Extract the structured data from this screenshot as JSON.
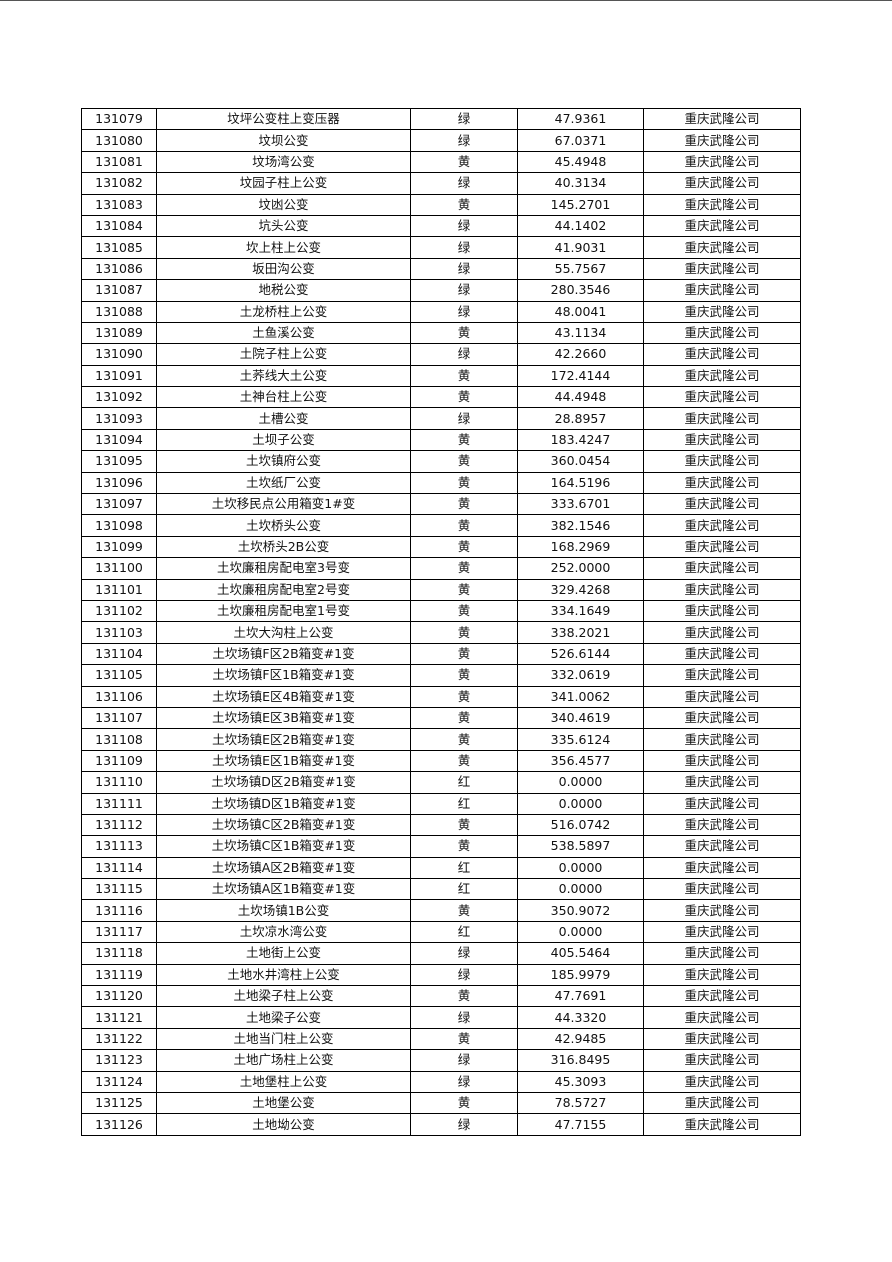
{
  "rows": [
    [
      "131079",
      "坟坪公变柱上变压器",
      "绿",
      "47.9361",
      "重庆武隆公司"
    ],
    [
      "131080",
      "坟坝公变",
      "绿",
      "67.0371",
      "重庆武隆公司"
    ],
    [
      "131081",
      "坟场湾公变",
      "黄",
      "45.4948",
      "重庆武隆公司"
    ],
    [
      "131082",
      "坟园子柱上公变",
      "绿",
      "40.3134",
      "重庆武隆公司"
    ],
    [
      "131083",
      "坟凼公变",
      "黄",
      "145.2701",
      "重庆武隆公司"
    ],
    [
      "131084",
      "坑头公变",
      "绿",
      "44.1402",
      "重庆武隆公司"
    ],
    [
      "131085",
      "坎上柱上公变",
      "绿",
      "41.9031",
      "重庆武隆公司"
    ],
    [
      "131086",
      "坂田沟公变",
      "绿",
      "55.7567",
      "重庆武隆公司"
    ],
    [
      "131087",
      "地税公变",
      "绿",
      "280.3546",
      "重庆武隆公司"
    ],
    [
      "131088",
      "土龙桥柱上公变",
      "绿",
      "48.0041",
      "重庆武隆公司"
    ],
    [
      "131089",
      "土鱼溪公变",
      "黄",
      "43.1134",
      "重庆武隆公司"
    ],
    [
      "131090",
      "土院子柱上公变",
      "绿",
      "42.2660",
      "重庆武隆公司"
    ],
    [
      "131091",
      "土荞线大土公变",
      "黄",
      "172.4144",
      "重庆武隆公司"
    ],
    [
      "131092",
      "土神台柱上公变",
      "黄",
      "44.4948",
      "重庆武隆公司"
    ],
    [
      "131093",
      "土槽公变",
      "绿",
      "28.8957",
      "重庆武隆公司"
    ],
    [
      "131094",
      "土坝子公变",
      "黄",
      "183.4247",
      "重庆武隆公司"
    ],
    [
      "131095",
      "土坎镇府公变",
      "黄",
      "360.0454",
      "重庆武隆公司"
    ],
    [
      "131096",
      "土坎纸厂公变",
      "黄",
      "164.5196",
      "重庆武隆公司"
    ],
    [
      "131097",
      "土坎移民点公用箱变1#变",
      "黄",
      "333.6701",
      "重庆武隆公司"
    ],
    [
      "131098",
      "土坎桥头公变",
      "黄",
      "382.1546",
      "重庆武隆公司"
    ],
    [
      "131099",
      "土坎桥头2B公变",
      "黄",
      "168.2969",
      "重庆武隆公司"
    ],
    [
      "131100",
      "土坎廉租房配电室3号变",
      "黄",
      "252.0000",
      "重庆武隆公司"
    ],
    [
      "131101",
      "土坎廉租房配电室2号变",
      "黄",
      "329.4268",
      "重庆武隆公司"
    ],
    [
      "131102",
      "土坎廉租房配电室1号变",
      "黄",
      "334.1649",
      "重庆武隆公司"
    ],
    [
      "131103",
      "土坎大沟柱上公变",
      "黄",
      "338.2021",
      "重庆武隆公司"
    ],
    [
      "131104",
      "土坎场镇F区2B箱变#1变",
      "黄",
      "526.6144",
      "重庆武隆公司"
    ],
    [
      "131105",
      "土坎场镇F区1B箱变#1变",
      "黄",
      "332.0619",
      "重庆武隆公司"
    ],
    [
      "131106",
      "土坎场镇E区4B箱变#1变",
      "黄",
      "341.0062",
      "重庆武隆公司"
    ],
    [
      "131107",
      "土坎场镇E区3B箱变#1变",
      "黄",
      "340.4619",
      "重庆武隆公司"
    ],
    [
      "131108",
      "土坎场镇E区2B箱变#1变",
      "黄",
      "335.6124",
      "重庆武隆公司"
    ],
    [
      "131109",
      "土坎场镇E区1B箱变#1变",
      "黄",
      "356.4577",
      "重庆武隆公司"
    ],
    [
      "131110",
      "土坎场镇D区2B箱变#1变",
      "红",
      "0.0000",
      "重庆武隆公司"
    ],
    [
      "131111",
      "土坎场镇D区1B箱变#1变",
      "红",
      "0.0000",
      "重庆武隆公司"
    ],
    [
      "131112",
      "土坎场镇C区2B箱变#1变",
      "黄",
      "516.0742",
      "重庆武隆公司"
    ],
    [
      "131113",
      "土坎场镇C区1B箱变#1变",
      "黄",
      "538.5897",
      "重庆武隆公司"
    ],
    [
      "131114",
      "土坎场镇A区2B箱变#1变",
      "红",
      "0.0000",
      "重庆武隆公司"
    ],
    [
      "131115",
      "土坎场镇A区1B箱变#1变",
      "红",
      "0.0000",
      "重庆武隆公司"
    ],
    [
      "131116",
      "土坎场镇1B公变",
      "黄",
      "350.9072",
      "重庆武隆公司"
    ],
    [
      "131117",
      "土坎凉水湾公变",
      "红",
      "0.0000",
      "重庆武隆公司"
    ],
    [
      "131118",
      "土地街上公变",
      "绿",
      "405.5464",
      "重庆武隆公司"
    ],
    [
      "131119",
      "土地水井湾柱上公变",
      "绿",
      "185.9979",
      "重庆武隆公司"
    ],
    [
      "131120",
      "土地梁子柱上公变",
      "黄",
      "47.7691",
      "重庆武隆公司"
    ],
    [
      "131121",
      "土地梁子公变",
      "绿",
      "44.3320",
      "重庆武隆公司"
    ],
    [
      "131122",
      "土地当门柱上公变",
      "黄",
      "42.9485",
      "重庆武隆公司"
    ],
    [
      "131123",
      "土地广场柱上公变",
      "绿",
      "316.8495",
      "重庆武隆公司"
    ],
    [
      "131124",
      "土地堡柱上公变",
      "绿",
      "45.3093",
      "重庆武隆公司"
    ],
    [
      "131125",
      "土地堡公变",
      "黄",
      "78.5727",
      "重庆武隆公司"
    ],
    [
      "131126",
      "土地坳公变",
      "绿",
      "47.7155",
      "重庆武隆公司"
    ]
  ]
}
